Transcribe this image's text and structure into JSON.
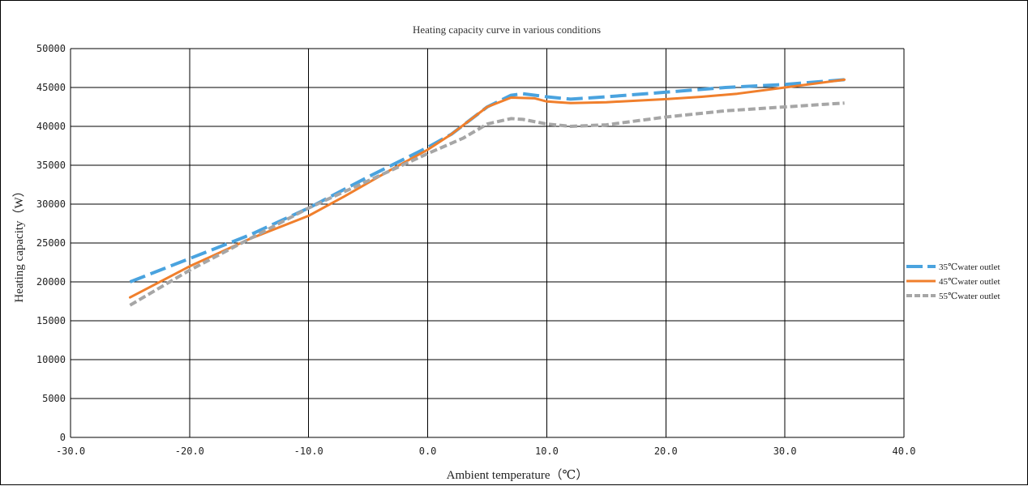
{
  "chart_data": {
    "type": "line",
    "title": "Heating capacity curve in various conditions",
    "xlabel": "Ambient temperature（℃）",
    "ylabel": "Heating capacity（W）",
    "xlim": [
      -30,
      40
    ],
    "ylim": [
      0,
      50000
    ],
    "x_ticks": [
      -30,
      -20,
      -10,
      0,
      10,
      20,
      30,
      40
    ],
    "x_tick_labels": [
      "-30.0",
      "-20.0",
      "-10.0",
      "0.0",
      "10.0",
      "20.0",
      "30.0",
      "40.0"
    ],
    "y_ticks": [
      0,
      5000,
      10000,
      15000,
      20000,
      25000,
      30000,
      35000,
      40000,
      45000,
      50000
    ],
    "y_tick_labels": [
      "0",
      "5000",
      "10000",
      "15000",
      "20000",
      "25000",
      "30000",
      "35000",
      "40000",
      "45000",
      "50000"
    ],
    "grid": true,
    "legend_position": "right",
    "series": [
      {
        "name": "35℃water outlet",
        "color": "#4aa3df",
        "style": "long-dash",
        "x": [
          -25,
          -20,
          -15,
          -10,
          -5,
          0,
          2,
          5,
          7,
          8,
          10,
          12,
          15,
          20,
          25,
          30,
          35
        ],
        "y": [
          20000,
          23000,
          26000,
          29500,
          33500,
          37300,
          39000,
          42500,
          44000,
          44200,
          43800,
          43500,
          43800,
          44400,
          45000,
          45400,
          46000
        ]
      },
      {
        "name": "45℃water outlet",
        "color": "#f07f2c",
        "style": "solid",
        "x": [
          -25,
          -20,
          -15,
          -10,
          -7,
          -3,
          0,
          2,
          5,
          7,
          9,
          10,
          12,
          15,
          20,
          23,
          26,
          30,
          35
        ],
        "y": [
          18000,
          22000,
          25500,
          28500,
          31000,
          34500,
          37000,
          39000,
          42500,
          43700,
          43600,
          43200,
          43000,
          43100,
          43500,
          43800,
          44200,
          45000,
          46000
        ]
      },
      {
        "name": "55℃water outlet",
        "color": "#a6a6a6",
        "style": "short-dash",
        "x": [
          -25,
          -20,
          -15,
          -10,
          -5,
          0,
          3,
          5,
          7,
          8,
          10,
          12,
          15,
          20,
          25,
          30,
          35
        ],
        "y": [
          17000,
          21500,
          25500,
          29500,
          33000,
          36500,
          38500,
          40300,
          41000,
          40900,
          40300,
          40000,
          40200,
          41200,
          42000,
          42500,
          43000
        ]
      }
    ]
  }
}
